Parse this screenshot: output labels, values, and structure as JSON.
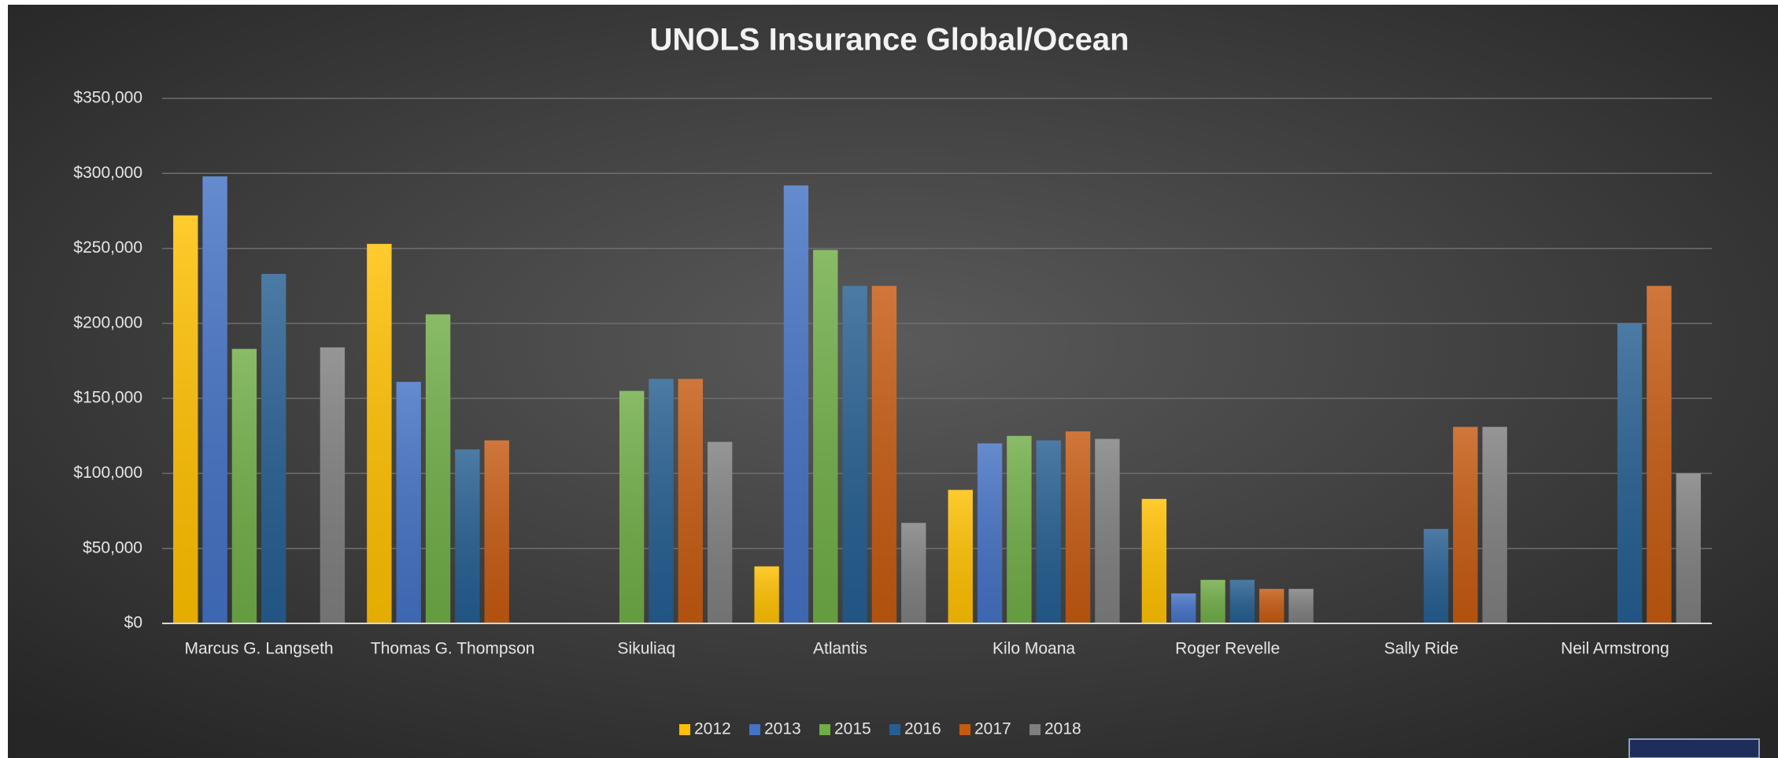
{
  "chart_data": {
    "type": "bar",
    "title": "UNOLS Insurance Global/Ocean",
    "categories": [
      "Marcus G. Langseth",
      "Thomas G. Thompson",
      "Sikuliaq",
      "Atlantis",
      "Kilo Moana",
      "Roger Revelle",
      "Sally Ride",
      "Neil Armstrong"
    ],
    "series": [
      {
        "name": "2012",
        "color": "#ffc000",
        "values": [
          272000,
          253000,
          null,
          38000,
          89000,
          83000,
          null,
          null
        ]
      },
      {
        "name": "2013",
        "color": "#4472c4",
        "values": [
          298000,
          161000,
          null,
          292000,
          120000,
          20000,
          null,
          null
        ]
      },
      {
        "name": "2015",
        "color": "#70ad47",
        "values": [
          183000,
          206000,
          155000,
          249000,
          125000,
          29000,
          null,
          null
        ]
      },
      {
        "name": "2016",
        "color": "#255e91",
        "values": [
          233000,
          116000,
          163000,
          225000,
          122000,
          29000,
          63000,
          200000
        ]
      },
      {
        "name": "2017",
        "color": "#c55a11",
        "values": [
          null,
          122000,
          163000,
          225000,
          128000,
          23000,
          131000,
          225000
        ]
      },
      {
        "name": "2018",
        "color": "#7f7f7f",
        "values": [
          184000,
          null,
          121000,
          67000,
          123000,
          23000,
          131000,
          100000
        ]
      }
    ],
    "ylim": [
      0,
      350000
    ],
    "yticks": [
      {
        "value": 0,
        "label": "$0"
      },
      {
        "value": 50000,
        "label": "$50,000"
      },
      {
        "value": 100000,
        "label": "$100,000"
      },
      {
        "value": 150000,
        "label": "$150,000"
      },
      {
        "value": 200000,
        "label": "$200,000"
      },
      {
        "value": 250000,
        "label": "$250,000"
      },
      {
        "value": 300000,
        "label": "$300,000"
      },
      {
        "value": 350000,
        "label": "$350,000"
      }
    ],
    "grid": true,
    "legend": "bottom"
  }
}
